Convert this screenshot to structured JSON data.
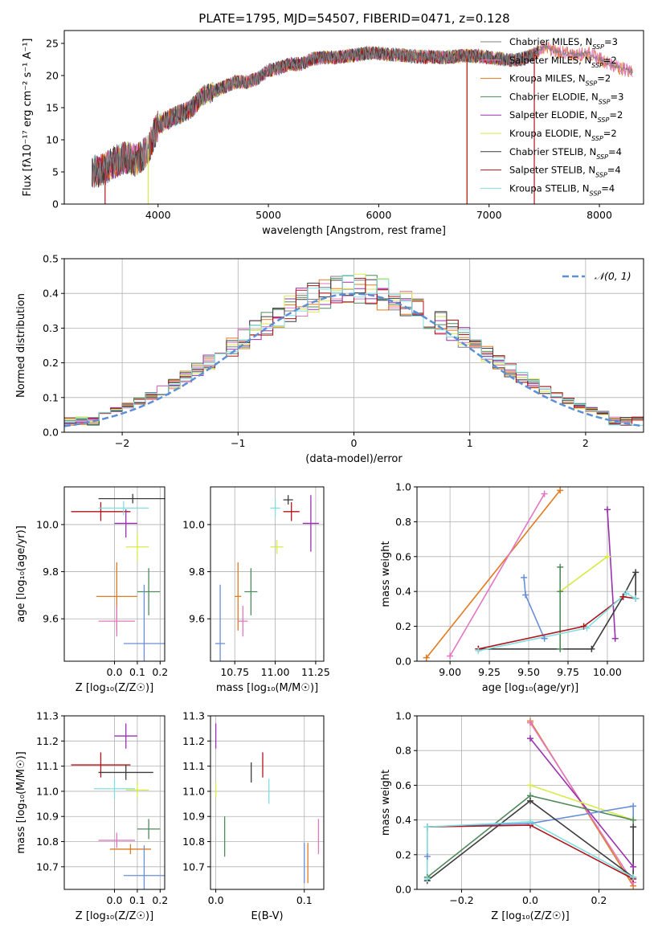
{
  "figure": {
    "title": "PLATE=1795, MJD=54507, FIBERID=0471, z=0.128"
  },
  "colors": {
    "Chabrier MILES": "#7f7f7f",
    "Salpeter MILES": "#e377c2",
    "Kroupa MILES": "#e07b20",
    "Chabrier ELODIE": "#4f8a5b",
    "Salpeter ELODIE": "#9b30b0",
    "Kroupa ELODIE": "#d8ea4a",
    "Chabrier STELIB": "#3d3d3d",
    "Salpeter STELIB": "#b0141c",
    "Kroupa STELIB": "#80dfe0",
    "blue": "#6a8fd8",
    "gaussian": "#5b8fd6"
  },
  "legend_spectrum": [
    {
      "key": "Chabrier MILES",
      "name": "Chabrier MILES",
      "n": "3"
    },
    {
      "key": "Salpeter MILES",
      "name": "Salpeter MILES",
      "n": "2"
    },
    {
      "key": "Kroupa MILES",
      "name": "Kroupa MILES",
      "n": "2"
    },
    {
      "key": "Chabrier ELODIE",
      "name": "Chabrier ELODIE",
      "n": "3"
    },
    {
      "key": "Salpeter ELODIE",
      "name": "Salpeter ELODIE",
      "n": "2"
    },
    {
      "key": "Kroupa ELODIE",
      "name": "Kroupa ELODIE",
      "n": "2"
    },
    {
      "key": "Chabrier STELIB",
      "name": "Chabrier STELIB",
      "n": "4"
    },
    {
      "key": "Salpeter STELIB",
      "name": "Salpeter STELIB",
      "n": "4"
    },
    {
      "key": "Kroupa STELIB",
      "name": "Kroupa STELIB",
      "n": "4"
    }
  ],
  "chart_data": [
    {
      "id": "spectrum",
      "type": "line",
      "xlabel": "wavelength [Angstrom, rest frame]",
      "xlim": [
        3150,
        8400
      ],
      "ylim": [
        0,
        27
      ],
      "xticks": [
        4000,
        5000,
        6000,
        7000,
        8000
      ],
      "yticks": [
        0,
        5,
        10,
        15,
        20,
        25
      ],
      "envelope": {
        "x": [
          3400,
          3500,
          3600,
          3700,
          3800,
          3900,
          4000,
          4100,
          4200,
          4300,
          4400,
          4500,
          4600,
          4700,
          4800,
          4900,
          5000,
          5100,
          5200,
          5300,
          5400,
          5500,
          5600,
          5700,
          5800,
          5900,
          6000,
          6100,
          6200,
          6300,
          6400,
          6500,
          6600,
          6700,
          6800,
          6900,
          7000,
          7100,
          7200,
          7300,
          7400,
          7500,
          7600,
          7700,
          7800,
          7900,
          8000,
          8100,
          8200,
          8300
        ],
        "y": [
          5,
          5.3,
          6.5,
          7.3,
          6.8,
          8.2,
          12.3,
          13.2,
          14,
          14.8,
          16.8,
          17.5,
          18.2,
          19,
          19,
          19.5,
          20.8,
          21.2,
          21.8,
          21.8,
          22.6,
          22.8,
          22.8,
          23,
          23.2,
          23.5,
          23.5,
          23.2,
          23.2,
          23,
          22.9,
          22.9,
          22.8,
          23,
          23.1,
          23,
          22.8,
          22.6,
          22.4,
          22.6,
          23.2,
          24.5,
          23.8,
          23.4,
          23.2,
          23.5,
          22.6,
          21.8,
          21.1,
          20.6
        ]
      },
      "drops": [
        {
          "model": "Salpeter STELIB",
          "x": 3520
        },
        {
          "model": "Kroupa ELODIE",
          "x": 3910
        },
        {
          "model": "Kroupa ELODIE",
          "x": 6800
        },
        {
          "model": "Salpeter STELIB",
          "x": 6800
        },
        {
          "model": "Salpeter STELIB",
          "x": 7410
        }
      ],
      "xlabels": [
        "4000",
        "5000",
        "6000",
        "7000",
        "8000"
      ],
      "ylabels": [
        "0",
        "5",
        "10",
        "15",
        "20",
        "25"
      ],
      "ylabel": "Flux [fλ10⁻¹⁷ erg cm⁻² s⁻¹ A⁻¹]"
    },
    {
      "id": "residuals",
      "type": "histogram",
      "xlabel": "(data-model)/error",
      "ylabel": "Normed distribution",
      "xlim": [
        -2.5,
        2.5
      ],
      "ylim": [
        0,
        0.5
      ],
      "xticks": [
        -2,
        -1,
        0,
        1,
        2
      ],
      "yticks": [
        0,
        0.1,
        0.2,
        0.3,
        0.4,
        0.5
      ],
      "xlabels": [
        "−2",
        "−1",
        "0",
        "1",
        "2"
      ],
      "ylabels": [
        "0.0",
        "0.1",
        "0.2",
        "0.3",
        "0.4",
        "0.5"
      ],
      "bin_width": 0.1,
      "gaussian_label": "𝒩(0, 1)",
      "series_offsets": [
        {
          "model": "Chabrier MILES",
          "seed": 1
        },
        {
          "model": "Salpeter MILES",
          "seed": 2
        },
        {
          "model": "Kroupa MILES",
          "seed": 3
        },
        {
          "model": "Chabrier ELODIE",
          "seed": 4
        },
        {
          "model": "Salpeter ELODIE",
          "seed": 5
        },
        {
          "model": "Kroupa ELODIE",
          "seed": 6
        },
        {
          "model": "Chabrier STELIB",
          "seed": 7
        },
        {
          "model": "Salpeter STELIB",
          "seed": 8
        },
        {
          "model": "Kroupa STELIB",
          "seed": 9
        }
      ]
    },
    {
      "id": "z-age",
      "type": "errorbar",
      "xlabel": "Z [log₁₀(Z/Z☉)]",
      "ylabel": "age  [log₁₀(age/yr)]",
      "xlim": [
        -0.22,
        0.22
      ],
      "ylim": [
        9.42,
        10.16
      ],
      "xticks": [
        0.0,
        0.1,
        0.2
      ],
      "yticks": [
        9.6,
        9.8,
        10.0
      ],
      "xlabels": [
        "0.0",
        "0.1",
        "0.2"
      ],
      "ylabels": [
        "9.6",
        "9.8",
        "10.0"
      ],
      "points": [
        {
          "model": "Chabrier STELIB",
          "x": 0.08,
          "xe": 0.15,
          "y": 10.11,
          "ye": 0.02
        },
        {
          "model": "Salpeter STELIB",
          "x": -0.06,
          "xe": 0.13,
          "y": 10.055,
          "ye": 0.04
        },
        {
          "model": "Kroupa STELIB",
          "x": 0.04,
          "xe": 0.11,
          "y": 10.07,
          "ye": 0.03
        },
        {
          "model": "Salpeter ELODIE",
          "x": 0.05,
          "xe": 0.05,
          "y": 10.005,
          "ye": 0.06
        },
        {
          "model": "Kroupa ELODIE",
          "x": 0.1,
          "xe": 0.05,
          "y": 9.905,
          "ye": 0.06
        },
        {
          "model": "Kroupa MILES",
          "x": 0.01,
          "xe": 0.09,
          "y": 9.695,
          "ye": 0.145
        },
        {
          "model": "Chabrier ELODIE",
          "x": 0.15,
          "xe": 0.05,
          "y": 9.715,
          "ye": 0.1
        },
        {
          "model": "Salpeter MILES",
          "x": 0.01,
          "xe": 0.08,
          "y": 9.59,
          "ye": 0.065
        },
        {
          "model": "blue",
          "x": 0.13,
          "xe": 0.09,
          "y": 9.495,
          "ye": 0.25
        }
      ]
    },
    {
      "id": "mass-age",
      "type": "errorbar",
      "xlabel": "mass [log₁₀(M/M☉)]",
      "ylabel": "",
      "xlim": [
        10.6,
        11.3
      ],
      "ylim": [
        9.42,
        10.16
      ],
      "xticks": [
        10.75,
        11.0,
        11.25
      ],
      "yticks": [
        9.6,
        9.8,
        10.0
      ],
      "xlabels": [
        "10.75",
        "11.00",
        "11.25"
      ],
      "ylabels": [
        "9.6",
        "9.8",
        "10.0"
      ],
      "points": [
        {
          "model": "Chabrier STELIB",
          "x": 11.08,
          "xe": 0.03,
          "y": 10.105,
          "ye": 0.02
        },
        {
          "model": "Salpeter STELIB",
          "x": 11.1,
          "xe": 0.05,
          "y": 10.055,
          "ye": 0.04
        },
        {
          "model": "Kroupa STELIB",
          "x": 11.0,
          "xe": 0.03,
          "y": 10.07,
          "ye": 0.04
        },
        {
          "model": "Salpeter ELODIE",
          "x": 11.22,
          "xe": 0.05,
          "y": 10.005,
          "ye": 0.12
        },
        {
          "model": "Kroupa ELODIE",
          "x": 11.01,
          "xe": 0.04,
          "y": 9.905,
          "ye": 0.03
        },
        {
          "model": "Kroupa MILES",
          "x": 10.77,
          "xe": 0.02,
          "y": 9.695,
          "ye": 0.145
        },
        {
          "model": "Chabrier ELODIE",
          "x": 10.85,
          "xe": 0.04,
          "y": 9.715,
          "ye": 0.1
        },
        {
          "model": "Salpeter MILES",
          "x": 10.8,
          "xe": 0.03,
          "y": 9.59,
          "ye": 0.065
        },
        {
          "model": "blue",
          "x": 10.66,
          "xe": 0.03,
          "y": 9.495,
          "ye": 0.25
        }
      ]
    },
    {
      "id": "age-weight",
      "type": "line",
      "xlabel": "age  [log₁₀(age/yr)]",
      "ylabel": "mass weight",
      "xlim": [
        8.79,
        10.23
      ],
      "ylim": [
        0,
        1
      ],
      "xticks": [
        9.0,
        9.25,
        9.5,
        9.75,
        10.0
      ],
      "yticks": [
        0,
        0.2,
        0.4,
        0.6,
        0.8,
        1.0
      ],
      "xlabels": [
        "9.00",
        "9.25",
        "9.50",
        "9.75",
        "10.00"
      ],
      "ylabels": [
        "0.0",
        "0.2",
        "0.4",
        "0.6",
        "0.8",
        "1.0"
      ],
      "series": [
        {
          "model": "Kroupa MILES",
          "x": [
            8.85,
            9.7
          ],
          "y": [
            0.02,
            0.98
          ]
        },
        {
          "model": "Salpeter MILES",
          "x": [
            9.0,
            9.6
          ],
          "y": [
            0.03,
            0.96
          ]
        },
        {
          "model": "Kroupa ELODIE",
          "x": [
            9.7,
            10.0
          ],
          "y": [
            0.4,
            0.6
          ]
        },
        {
          "model": "Salpeter ELODIE",
          "x": [
            10.0,
            10.05
          ],
          "y": [
            0.87,
            0.13
          ]
        },
        {
          "model": "Chabrier ELODIE",
          "x": [
            9.7,
            9.7,
            9.7
          ],
          "y": [
            0.54,
            0.4,
            0.07
          ]
        },
        {
          "model": "blue",
          "x": [
            9.47,
            9.48,
            9.6
          ],
          "y": [
            0.48,
            0.38,
            0.13
          ]
        },
        {
          "model": "Chabrier STELIB",
          "x": [
            9.18,
            9.9,
            10.1,
            10.18,
            10.18
          ],
          "y": [
            0.07,
            0.07,
            0.37,
            0.51,
            0.36
          ]
        },
        {
          "model": "Salpeter STELIB",
          "x": [
            9.18,
            9.85,
            10.1,
            10.18
          ],
          "y": [
            0.07,
            0.2,
            0.37,
            0.36
          ]
        },
        {
          "model": "Kroupa STELIB",
          "x": [
            9.18,
            9.87,
            10.12,
            10.18
          ],
          "y": [
            0.06,
            0.19,
            0.39,
            0.36
          ]
        }
      ]
    },
    {
      "id": "z-mass",
      "type": "errorbar",
      "xlabel": "Z [log₁₀(Z/Z☉)]",
      "ylabel": "mass [log₁₀(M/M☉)]",
      "xlim": [
        -0.22,
        0.22
      ],
      "ylim": [
        10.61,
        11.3
      ],
      "xticks": [
        0.0,
        0.1,
        0.2
      ],
      "yticks": [
        10.7,
        10.8,
        10.9,
        11.0,
        11.1,
        11.2,
        11.3
      ],
      "xlabels": [
        "0.0",
        "0.1",
        "0.2"
      ],
      "ylabels": [
        "10.7",
        "10.8",
        "10.9",
        "11.0",
        "11.1",
        "11.2",
        "11.3"
      ],
      "points": [
        {
          "model": "Salpeter ELODIE",
          "x": 0.05,
          "xe": 0.05,
          "y": 11.22,
          "ye": 0.05
        },
        {
          "model": "Salpeter STELIB",
          "x": -0.06,
          "xe": 0.13,
          "y": 11.105,
          "ye": 0.05
        },
        {
          "model": "Chabrier STELIB",
          "x": 0.05,
          "xe": 0.12,
          "y": 11.075,
          "ye": 0.03
        },
        {
          "model": "Kroupa STELIB",
          "x": 0.0,
          "xe": 0.09,
          "y": 11.01,
          "ye": 0.04
        },
        {
          "model": "Kroupa ELODIE",
          "x": 0.1,
          "xe": 0.05,
          "y": 11.005,
          "ye": 0.03
        },
        {
          "model": "Chabrier ELODIE",
          "x": 0.15,
          "xe": 0.05,
          "y": 10.85,
          "ye": 0.04
        },
        {
          "model": "Salpeter MILES",
          "x": 0.01,
          "xe": 0.08,
          "y": 10.805,
          "ye": 0.03
        },
        {
          "model": "Kroupa MILES",
          "x": 0.07,
          "xe": 0.09,
          "y": 10.77,
          "ye": 0.02
        },
        {
          "model": "blue",
          "x": 0.13,
          "xe": 0.09,
          "y": 10.665,
          "ye": 0.12
        }
      ]
    },
    {
      "id": "ebv-mass",
      "type": "errorbar",
      "xlabel": "E(B-V)",
      "ylabel": "",
      "xlim": [
        -0.006,
        0.122
      ],
      "ylim": [
        10.61,
        11.3
      ],
      "xticks": [
        0.0,
        0.1
      ],
      "yticks": [
        10.7,
        10.8,
        10.9,
        11.0,
        11.1,
        11.2,
        11.3
      ],
      "xlabels": [
        "0.0",
        "0.1"
      ],
      "ylabels": [
        "10.7",
        "10.8",
        "10.9",
        "11.0",
        "11.1",
        "11.2",
        "11.3"
      ],
      "points": [
        {
          "model": "Salpeter ELODIE",
          "x": 0.0,
          "xe": 0,
          "y": 11.22,
          "ye": 0.05
        },
        {
          "model": "Kroupa ELODIE",
          "x": 0.0,
          "xe": 0,
          "y": 11.005,
          "ye": 0.03
        },
        {
          "model": "Salpeter STELIB",
          "x": 0.053,
          "xe": 0,
          "y": 11.105,
          "ye": 0.05
        },
        {
          "model": "Chabrier STELIB",
          "x": 0.04,
          "xe": 0,
          "y": 11.075,
          "ye": 0.04
        },
        {
          "model": "Kroupa STELIB",
          "x": 0.06,
          "xe": 0,
          "y": 11.0,
          "ye": 0.05
        },
        {
          "model": "Chabrier ELODIE",
          "x": 0.01,
          "xe": 0,
          "y": 10.82,
          "ye": 0.08
        },
        {
          "model": "Salpeter MILES",
          "x": 0.116,
          "xe": 0,
          "y": 10.82,
          "ye": 0.07
        },
        {
          "model": "blue",
          "x": 0.1,
          "xe": 0,
          "y": 10.715,
          "ye": 0.08
        },
        {
          "model": "Kroupa MILES",
          "x": 0.104,
          "xe": 0,
          "y": 10.715,
          "ye": 0.08
        }
      ]
    },
    {
      "id": "z-weight",
      "type": "line",
      "xlabel": "Z [log₁₀(Z/Z☉)]",
      "ylabel": "mass weight",
      "xlim": [
        -0.33,
        0.33
      ],
      "ylim": [
        0,
        1
      ],
      "xticks": [
        -0.2,
        0.0,
        0.2
      ],
      "yticks": [
        0,
        0.2,
        0.4,
        0.6,
        0.8,
        1.0
      ],
      "xlabels": [
        "−0.2",
        "0.0",
        "0.2"
      ],
      "ylabels": [
        "0.0",
        "0.2",
        "0.4",
        "0.6",
        "0.8",
        "1.0"
      ],
      "series": [
        {
          "model": "Kroupa MILES",
          "x": [
            0.0,
            0.3
          ],
          "y": [
            0.97,
            0.02
          ]
        },
        {
          "model": "Salpeter MILES",
          "x": [
            0.0,
            0.3
          ],
          "y": [
            0.96,
            0.04
          ]
        },
        {
          "model": "Salpeter ELODIE",
          "x": [
            0.0,
            0.3
          ],
          "y": [
            0.87,
            0.13
          ]
        },
        {
          "model": "Kroupa ELODIE",
          "x": [
            0.0,
            0.3
          ],
          "y": [
            0.6,
            0.4
          ]
        },
        {
          "model": "Chabrier ELODIE",
          "x": [
            -0.3,
            0.0,
            0.3
          ],
          "y": [
            0.07,
            0.54,
            0.4
          ]
        },
        {
          "model": "blue",
          "x": [
            -0.3,
            -0.3,
            0.0,
            0.3,
            0.3
          ],
          "y": [
            0.19,
            0.36,
            0.38,
            0.48,
            0.07
          ]
        },
        {
          "model": "Chabrier STELIB",
          "x": [
            -0.3,
            0.0,
            0.3,
            0.3
          ],
          "y": [
            0.05,
            0.51,
            0.07,
            0.36
          ]
        },
        {
          "model": "Salpeter STELIB",
          "x": [
            -0.3,
            0.0,
            0.3
          ],
          "y": [
            0.36,
            0.37,
            0.06
          ]
        },
        {
          "model": "Kroupa STELIB",
          "x": [
            -0.3,
            -0.3,
            0.0,
            0.3
          ],
          "y": [
            0.06,
            0.36,
            0.39,
            0.07
          ]
        }
      ]
    }
  ]
}
